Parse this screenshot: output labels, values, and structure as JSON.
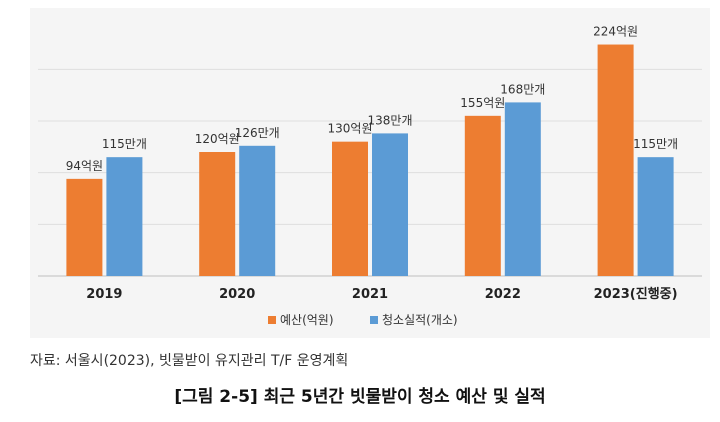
{
  "chart_data": {
    "type": "bar",
    "categories": [
      "2019",
      "2020",
      "2021",
      "2022",
      "2023(진행중)"
    ],
    "series": [
      {
        "name": "예산(억원)",
        "values": [
          94,
          120,
          130,
          155,
          224
        ],
        "color": "#ed7d31",
        "labels": [
          "94억원",
          "120억원",
          "130억원",
          "155억원",
          "224억원"
        ]
      },
      {
        "name": "청소실적(개소)",
        "values": [
          115,
          126,
          138,
          168,
          115
        ],
        "color": "#5b9bd5",
        "labels": [
          "115만개",
          "126만개",
          "138만개",
          "168만개",
          "115만개"
        ]
      }
    ],
    "ylim": [
      0,
      240
    ],
    "grid": true,
    "legend": "bottom-left"
  },
  "source_note": "자료: 서울시(2023), 빗물받이 유지관리 T/F 운영계획",
  "caption": "[그림 2-5] 최근 5년간 빗물받이 청소 예산 및 실적"
}
